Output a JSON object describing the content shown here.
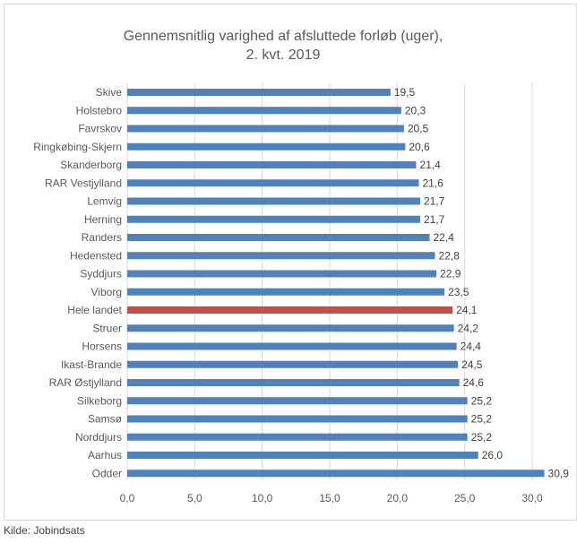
{
  "chart_data": {
    "type": "bar",
    "orientation": "horizontal",
    "title_line1": "Gennemsnitlig varighed af afsluttede forløb (uger),",
    "title_line2": "2. kvt. 2019",
    "categories": [
      "Skive",
      "Holstebro",
      "Favrskov",
      "Ringkøbing-Skjern",
      "Skanderborg",
      "RAR Vestjylland",
      "Lemvig",
      "Herning",
      "Randers",
      "Hedensted",
      "Syddjurs",
      "Viborg",
      "Hele landet",
      "Struer",
      "Horsens",
      "Ikast-Brande",
      "RAR Østjylland",
      "Silkeborg",
      "Samsø",
      "Norddjurs",
      "Aarhus",
      "Odder"
    ],
    "values": [
      19.5,
      20.3,
      20.5,
      20.6,
      21.4,
      21.6,
      21.7,
      21.7,
      22.4,
      22.8,
      22.9,
      23.5,
      24.1,
      24.2,
      24.4,
      24.5,
      24.6,
      25.2,
      25.2,
      25.2,
      26.0,
      30.9
    ],
    "value_labels": [
      "19,5",
      "20,3",
      "20,5",
      "20,6",
      "21,4",
      "21,6",
      "21,7",
      "21,7",
      "22,4",
      "22,8",
      "22,9",
      "23,5",
      "24,1",
      "24,2",
      "24,4",
      "24,5",
      "24,6",
      "25,2",
      "25,2",
      "25,2",
      "26,0",
      "30,9"
    ],
    "highlight_category": "Hele landet",
    "colors": {
      "bar": "#4f81bd",
      "highlight": "#c0504d",
      "grid": "#d9d9d9"
    },
    "xlim": [
      0,
      30
    ],
    "xticks": [
      0,
      5,
      10,
      15,
      20,
      25,
      30
    ],
    "xtick_labels": [
      "0,0",
      "5,0",
      "10,0",
      "15,0",
      "20,0",
      "25,0",
      "30,0"
    ],
    "grid": true,
    "xlabel": "",
    "ylabel": ""
  },
  "source": "Kilde: Jobindsats"
}
